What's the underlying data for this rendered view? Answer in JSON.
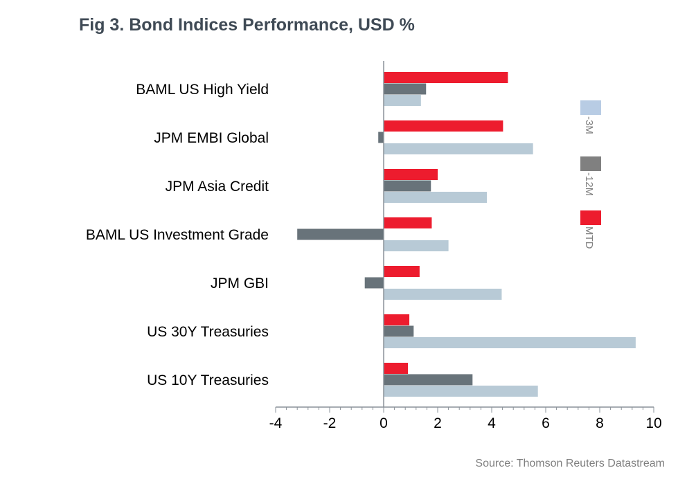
{
  "chart_data": {
    "type": "bar",
    "orientation": "horizontal",
    "title": "Fig 3. Bond Indices Performance, USD %",
    "source": "Source: Thomson Reuters Datastream",
    "categories": [
      "BAML US High Yield",
      "JPM EMBI Global",
      "JPM Asia Credit",
      "BAML US Investment Grade",
      "JPM GBI",
      "US 30Y Treasuries",
      "US 10Y Treasuries"
    ],
    "series": [
      {
        "name": "MTD",
        "color": "#ed1c2e",
        "legend_color": "#ed1c2e",
        "values": [
          4.6,
          4.42,
          2.0,
          1.78,
          1.33,
          0.95,
          0.9
        ]
      },
      {
        "name": "-12M",
        "color": "#68737a",
        "legend_color": "#808080",
        "values": [
          1.57,
          -0.2,
          1.75,
          -3.2,
          -0.7,
          1.11,
          3.29
        ]
      },
      {
        "name": "-3M",
        "color": "#b8cad6",
        "legend_color": "#b8cce4",
        "values": [
          1.38,
          5.53,
          3.82,
          2.4,
          4.37,
          9.33,
          5.71
        ]
      }
    ],
    "xlim": [
      -4,
      10
    ],
    "xticks": [
      -4,
      -2,
      0,
      2,
      4,
      6,
      8,
      10
    ],
    "xtick_labels": [
      "-4",
      "-2",
      "0",
      "2",
      "4",
      "6",
      "8",
      "10"
    ],
    "grid": false,
    "legend_placement": "right"
  }
}
